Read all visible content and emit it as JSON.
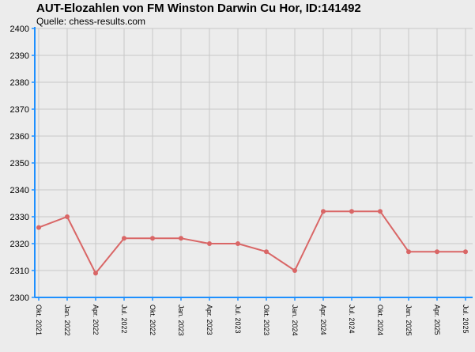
{
  "header": {
    "title": "AUT-Elozahlen von FM Winston Darwin Cu Hor, ID:141492",
    "subtitle": "Quelle: chess-results.com"
  },
  "colors": {
    "background": "#ececec",
    "grid": "#c8c8c8",
    "axis": "#1e90ff",
    "line": "#d96666"
  },
  "chart_data": {
    "type": "line",
    "title": "AUT-Elozahlen von FM Winston Darwin Cu Hor, ID:141492",
    "xlabel": "",
    "ylabel": "",
    "ylim": [
      2300,
      2400
    ],
    "yticks": [
      2300,
      2310,
      2320,
      2330,
      2340,
      2350,
      2360,
      2370,
      2380,
      2390,
      2400
    ],
    "grid": true,
    "categories": [
      "Okt. 2021",
      "Jan. 2022",
      "Apr. 2022",
      "Jul. 2022",
      "Okt. 2022",
      "Jan. 2023",
      "Apr. 2023",
      "Jul. 2023",
      "Okt. 2023",
      "Jan. 2024",
      "Apr. 2024",
      "Jul. 2024",
      "Okt. 2024",
      "Jan. 2025",
      "Apr. 2025",
      "Jul. 2025"
    ],
    "series": [
      {
        "values": [
          2326,
          2330,
          2309,
          2322,
          2322,
          2322,
          2320,
          2320,
          2317,
          2310,
          2332,
          2332,
          2332,
          2317,
          2317,
          2317
        ]
      }
    ]
  }
}
